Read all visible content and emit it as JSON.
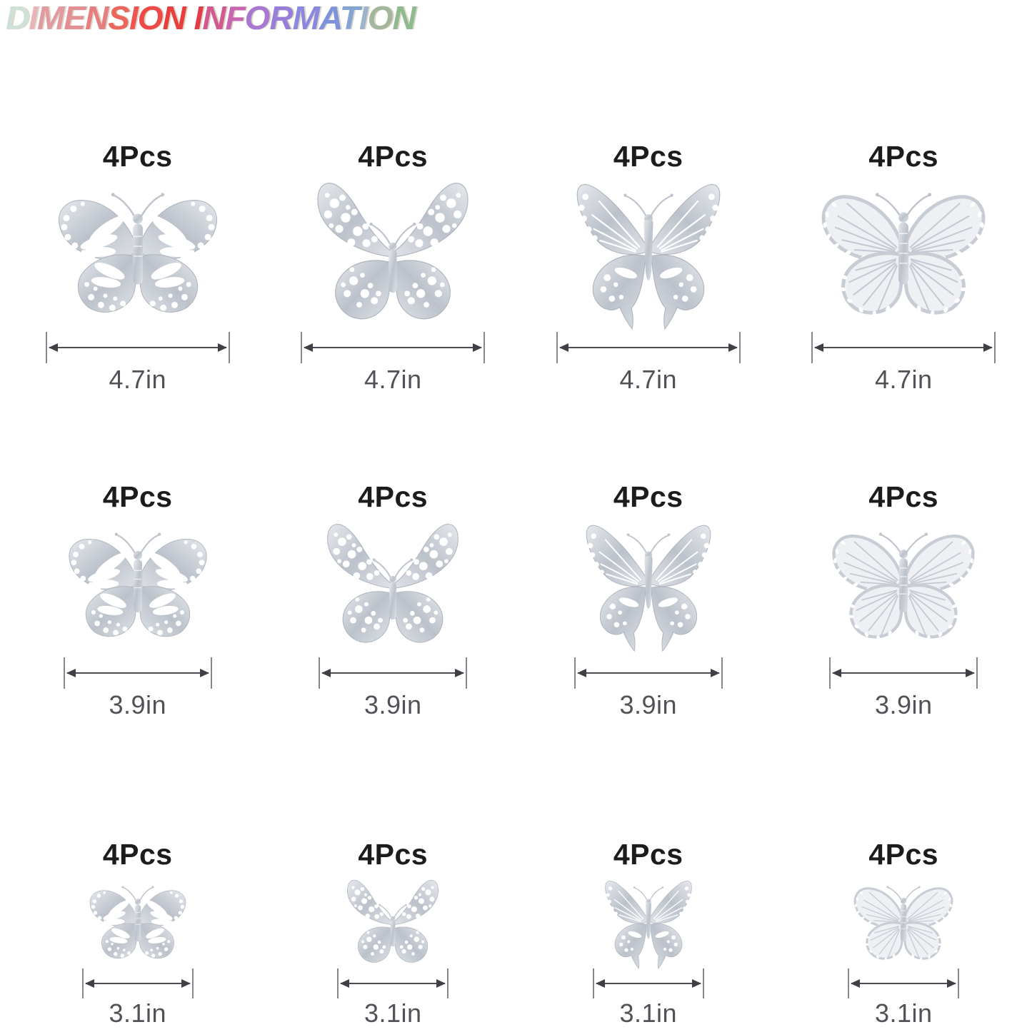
{
  "title": {
    "text": "DIMENSION INFORMATION",
    "letter_colors": [
      "#cfe0d6",
      "#e8b4ba",
      "#e09aa0",
      "#e39092",
      "#e57f7f",
      "#ed665e",
      "#f05651",
      "#ee4a47",
      "#e83f3e",
      null,
      "#e23b49",
      "#d15b90",
      "#c966b2",
      "#a878d2",
      "#997ed9",
      "#8b88e0",
      "#7f92dc",
      "#84a4d3",
      "#9eb3cc",
      "#a4b79d",
      "#8fba8f"
    ],
    "edge_shadow_color": "rgba(168,158,118,0.40)"
  },
  "palette": {
    "background": "#ffffff",
    "pcs_text": "#1c1c1e",
    "size_text": "#505257",
    "arrow_line": "#4b4c52",
    "arrow_tick": "#86878d",
    "butterfly_silver": "#c4c9d2",
    "butterfly_silver_light": "#e7e9ed"
  },
  "grid": {
    "rows": [
      {
        "cells": [
          {
            "pcs": "4Pcs",
            "size": "4.7in",
            "butterfly": "dotted-monarch-hollow-butterfly-icon"
          },
          {
            "pcs": "4Pcs",
            "size": "4.7in",
            "butterfly": "lace-filigree-hollow-butterfly-icon"
          },
          {
            "pcs": "4Pcs",
            "size": "4.7in",
            "butterfly": "swallowtail-hollow-butterfly-icon"
          },
          {
            "pcs": "4Pcs",
            "size": "4.7in",
            "butterfly": "veined-monarch-hollow-butterfly-icon"
          }
        ]
      },
      {
        "cells": [
          {
            "pcs": "4Pcs",
            "size": "3.9in",
            "butterfly": "dotted-monarch-hollow-butterfly-icon"
          },
          {
            "pcs": "4Pcs",
            "size": "3.9in",
            "butterfly": "lace-filigree-hollow-butterfly-icon"
          },
          {
            "pcs": "4Pcs",
            "size": "3.9in",
            "butterfly": "swallowtail-hollow-butterfly-icon"
          },
          {
            "pcs": "4Pcs",
            "size": "3.9in",
            "butterfly": "veined-monarch-hollow-butterfly-icon"
          }
        ]
      },
      {
        "cells": [
          {
            "pcs": "4Pcs",
            "size": "3.1in",
            "butterfly": "dotted-monarch-hollow-butterfly-icon"
          },
          {
            "pcs": "4Pcs",
            "size": "3.1in",
            "butterfly": "lace-filigree-hollow-butterfly-icon"
          },
          {
            "pcs": "4Pcs",
            "size": "3.1in",
            "butterfly": "swallowtail-hollow-butterfly-icon"
          },
          {
            "pcs": "4Pcs",
            "size": "3.1in",
            "butterfly": "veined-monarch-hollow-butterfly-icon"
          }
        ]
      }
    ]
  }
}
